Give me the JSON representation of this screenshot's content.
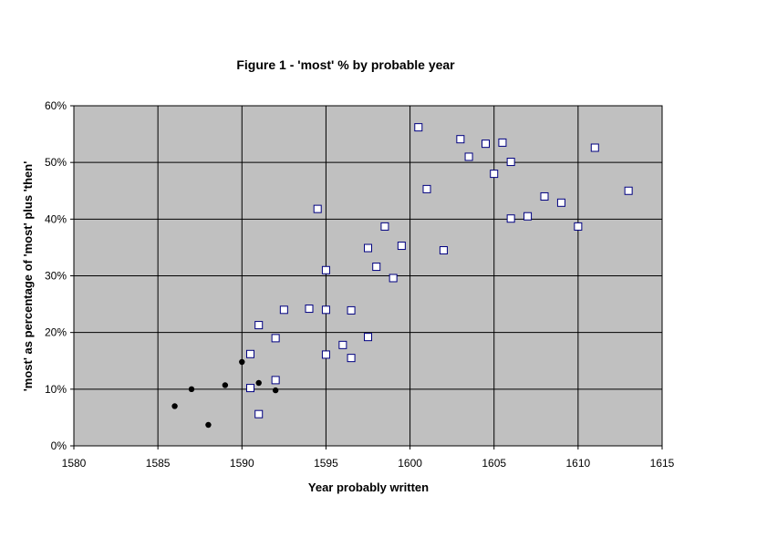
{
  "chart_data": {
    "type": "scatter",
    "title": "Figure 1 - 'most' % by probable year",
    "xlabel": "Year probably written",
    "ylabel": "'most' as percentage of 'most' plus 'then'",
    "xlim": [
      1580,
      1615
    ],
    "ylim": [
      0,
      60
    ],
    "x_ticks": [
      "1580",
      "1585",
      "1590",
      "1595",
      "1600",
      "1605",
      "1610",
      "1615"
    ],
    "y_ticks": [
      "0%",
      "10%",
      "20%",
      "30%",
      "40%",
      "50%",
      "60%"
    ],
    "grid": true,
    "plot_background": "#c0c0c0",
    "series": [
      {
        "marker": "filled-circle",
        "color": "#000000",
        "points": [
          [
            1586,
            7
          ],
          [
            1587,
            10
          ],
          [
            1588,
            3.7
          ],
          [
            1589,
            10.7
          ],
          [
            1590,
            14.8
          ],
          [
            1591,
            11.1
          ],
          [
            1592,
            9.8
          ]
        ]
      },
      {
        "marker": "open-square",
        "color": "#ffffff",
        "edgecolor": "#000080",
        "points": [
          [
            1590.5,
            16.2
          ],
          [
            1590.5,
            10.2
          ],
          [
            1591,
            21.3
          ],
          [
            1591,
            5.6
          ],
          [
            1592,
            19
          ],
          [
            1592,
            11.6
          ],
          [
            1592.5,
            24
          ],
          [
            1594,
            24.2
          ],
          [
            1594.5,
            41.8
          ],
          [
            1595,
            31
          ],
          [
            1595,
            24
          ],
          [
            1595,
            16.1
          ],
          [
            1596,
            17.8
          ],
          [
            1596.5,
            23.9
          ],
          [
            1596.5,
            15.5
          ],
          [
            1597.5,
            34.9
          ],
          [
            1597.5,
            19.2
          ],
          [
            1598,
            31.6
          ],
          [
            1598.5,
            38.7
          ],
          [
            1599,
            29.6
          ],
          [
            1599.5,
            35.3
          ],
          [
            1600.5,
            56.2
          ],
          [
            1601,
            45.3
          ],
          [
            1602,
            34.5
          ],
          [
            1603,
            54.1
          ],
          [
            1603.5,
            51
          ],
          [
            1604.5,
            53.3
          ],
          [
            1605,
            48
          ],
          [
            1605.5,
            53.5
          ],
          [
            1606,
            50.1
          ],
          [
            1606,
            40.1
          ],
          [
            1607,
            40.5
          ],
          [
            1608,
            44
          ],
          [
            1609,
            42.9
          ],
          [
            1610,
            38.7
          ],
          [
            1611,
            52.6
          ],
          [
            1613,
            45
          ]
        ]
      }
    ]
  }
}
